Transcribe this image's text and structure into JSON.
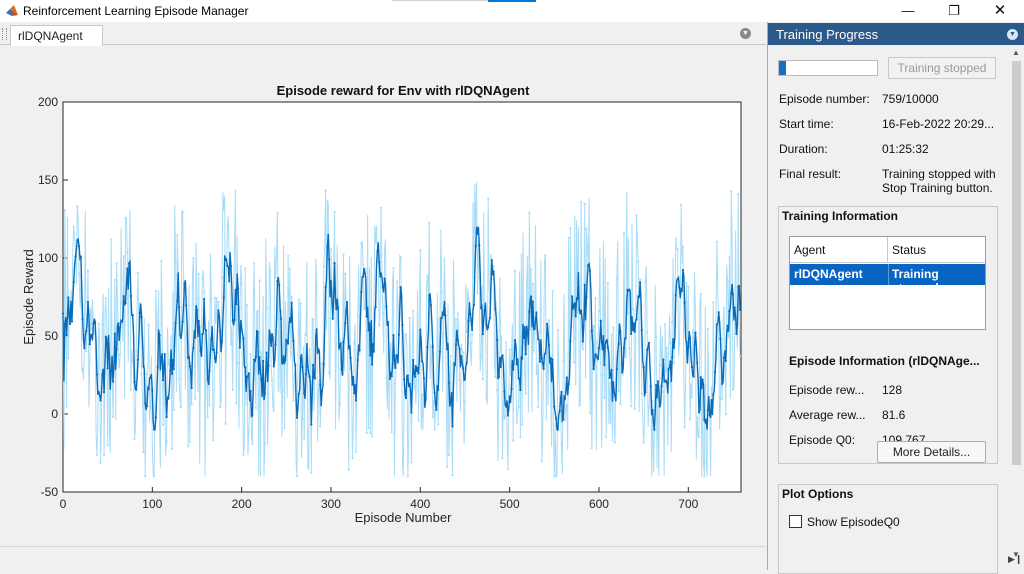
{
  "window": {
    "title": "Reinforcement Learning Episode Manager"
  },
  "tab": {
    "label": "rlDQNAgent"
  },
  "plot": {
    "title": "Episode reward for Env with rlDQNAgent"
  },
  "panel": {
    "title": "Training Progress",
    "progress_fraction": 0.0759,
    "stop_button": "Training stopped",
    "rows": [
      {
        "label": "Episode number:",
        "value": "759/10000"
      },
      {
        "label": "Start time:",
        "value": "16-Feb-2022 20:29..."
      },
      {
        "label": "Duration:",
        "value": "01:25:32"
      },
      {
        "label": "Final result:",
        "value": "Training stopped with Stop Training button."
      }
    ],
    "training_info": {
      "title": "Training Information",
      "col_agent": "Agent",
      "col_status": "Status",
      "agent": "rlDQNAgent",
      "status": "Training stopped"
    },
    "episode_info": {
      "title": "Episode Information (rlDQNAge...",
      "rows": [
        {
          "label": "Episode rew...",
          "value": "128"
        },
        {
          "label": "Average rew...",
          "value": "81.6"
        },
        {
          "label": "Episode Q0:",
          "value": "109.767"
        }
      ],
      "details_button": "More Details..."
    },
    "plot_options": {
      "title": "Plot Options",
      "show_q0": "Show EpisodeQ0"
    }
  },
  "chart_data": {
    "type": "line",
    "title": "Episode reward for Env with rlDQNAgent",
    "xlabel": "Episode Number",
    "ylabel": "Episode Reward",
    "xlim": [
      0,
      759
    ],
    "ylim": [
      -50,
      200
    ],
    "xticks": [
      0,
      100,
      200,
      300,
      400,
      500,
      600,
      700
    ],
    "yticks": [
      -50,
      0,
      50,
      100,
      150,
      200
    ],
    "series": [
      {
        "role": "episode",
        "color": "#a9dcf7",
        "points": 759,
        "range": [
          -40,
          185
        ]
      },
      {
        "role": "average",
        "color": "#0a6bb8",
        "points": 759,
        "range": [
          -10,
          120
        ]
      }
    ]
  }
}
